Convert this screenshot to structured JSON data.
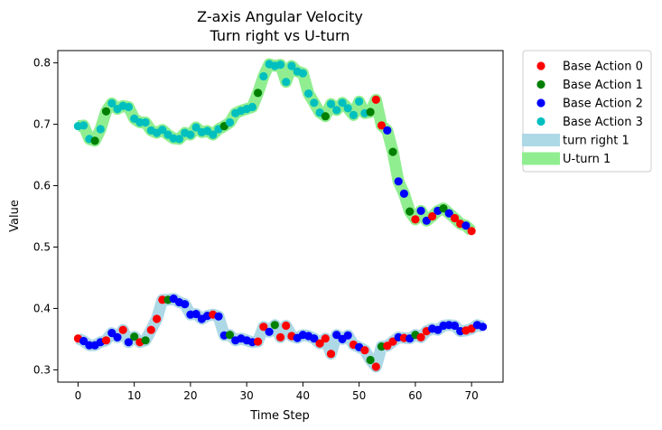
{
  "chart_data": {
    "type": "scatter",
    "title": "Z-axis Angular Velocity",
    "subtitle": "Turn right vs U-turn",
    "xlabel": "Time Step",
    "ylabel": "Value",
    "xlim": [
      -3.6,
      75.6
    ],
    "ylim": [
      0.28,
      0.82
    ],
    "xticks": [
      0,
      10,
      20,
      30,
      40,
      50,
      60,
      70
    ],
    "yticks": [
      0.3,
      0.4,
      0.5,
      0.6,
      0.7,
      0.8
    ],
    "xtick_labels": [
      "0",
      "10",
      "20",
      "30",
      "40",
      "50",
      "60",
      "70"
    ],
    "ytick_labels": [
      "0.3",
      "0.4",
      "0.5",
      "0.6",
      "0.7",
      "0.8"
    ],
    "grid": false,
    "legend_position": "outside right, top",
    "action_colors": [
      "#ff0000",
      "#008000",
      "#0000ff",
      "#00bfbf"
    ],
    "legend": [
      {
        "label": "Base Action 0",
        "kind": "marker",
        "color": "#ff0000"
      },
      {
        "label": "Base Action 1",
        "kind": "marker",
        "color": "#008000"
      },
      {
        "label": "Base Action 2",
        "kind": "marker",
        "color": "#0000ff"
      },
      {
        "label": "Base Action 3",
        "kind": "marker",
        "color": "#00bfbf"
      },
      {
        "label": "turn right 1",
        "kind": "line",
        "color": "#add8e6"
      },
      {
        "label": "U-turn 1",
        "kind": "line",
        "color": "#90ee90"
      }
    ],
    "series": [
      {
        "name": "U-turn 1",
        "line_color": "#90ee90",
        "x": [
          0,
          1,
          2,
          3,
          4,
          5,
          6,
          7,
          8,
          9,
          10,
          11,
          12,
          13,
          14,
          15,
          16,
          17,
          18,
          19,
          20,
          21,
          22,
          23,
          24,
          25,
          26,
          27,
          28,
          29,
          30,
          31,
          32,
          33,
          34,
          35,
          36,
          37,
          38,
          39,
          40,
          41,
          42,
          43,
          44,
          45,
          46,
          47,
          48,
          49,
          50,
          51,
          52,
          53,
          54,
          55,
          56,
          57,
          58,
          59,
          60,
          61,
          62,
          63,
          64,
          65,
          66,
          67,
          68,
          69,
          70
        ],
        "y": [
          0.697,
          0.698,
          0.676,
          0.673,
          0.692,
          0.721,
          0.734,
          0.725,
          0.73,
          0.728,
          0.709,
          0.703,
          0.703,
          0.69,
          0.686,
          0.691,
          0.683,
          0.677,
          0.676,
          0.686,
          0.683,
          0.695,
          0.687,
          0.689,
          0.683,
          0.692,
          0.697,
          0.703,
          0.718,
          0.722,
          0.725,
          0.728,
          0.751,
          0.778,
          0.798,
          0.795,
          0.797,
          0.769,
          0.795,
          0.786,
          0.783,
          0.75,
          0.735,
          0.719,
          0.713,
          0.733,
          0.723,
          0.735,
          0.726,
          0.715,
          0.737,
          0.718,
          0.72,
          0.74,
          0.698,
          0.69,
          0.655,
          0.607,
          0.587,
          0.558,
          0.545,
          0.559,
          0.543,
          0.55,
          0.559,
          0.563,
          0.555,
          0.547,
          0.538,
          0.535,
          0.526
        ],
        "actions": [
          3,
          3,
          3,
          1,
          3,
          1,
          3,
          3,
          3,
          3,
          3,
          3,
          3,
          3,
          3,
          3,
          3,
          3,
          3,
          3,
          3,
          3,
          3,
          3,
          3,
          3,
          1,
          3,
          3,
          3,
          3,
          3,
          1,
          3,
          3,
          3,
          3,
          3,
          3,
          3,
          3,
          3,
          3,
          3,
          1,
          3,
          3,
          3,
          3,
          3,
          3,
          3,
          1,
          0,
          0,
          2,
          1,
          2,
          2,
          1,
          0,
          2,
          2,
          0,
          2,
          1,
          2,
          0,
          0,
          2,
          0
        ]
      },
      {
        "name": "turn right 1",
        "line_color": "#add8e6",
        "x": [
          0,
          1,
          2,
          3,
          4,
          5,
          6,
          7,
          8,
          9,
          10,
          11,
          12,
          13,
          14,
          15,
          16,
          17,
          18,
          19,
          20,
          21,
          22,
          23,
          24,
          25,
          26,
          27,
          28,
          29,
          30,
          31,
          32,
          33,
          34,
          35,
          36,
          37,
          38,
          39,
          40,
          41,
          42,
          43,
          44,
          45,
          46,
          47,
          48,
          49,
          50,
          51,
          52,
          53,
          54,
          55,
          56,
          57,
          58,
          59,
          60,
          61,
          62,
          63,
          64,
          65,
          66,
          67,
          68,
          69,
          70,
          71,
          72
        ],
        "y": [
          0.351,
          0.347,
          0.34,
          0.34,
          0.345,
          0.348,
          0.36,
          0.353,
          0.365,
          0.345,
          0.354,
          0.345,
          0.348,
          0.365,
          0.383,
          0.414,
          0.414,
          0.416,
          0.41,
          0.407,
          0.39,
          0.391,
          0.383,
          0.388,
          0.39,
          0.387,
          0.356,
          0.357,
          0.348,
          0.351,
          0.348,
          0.345,
          0.346,
          0.37,
          0.362,
          0.373,
          0.353,
          0.372,
          0.355,
          0.352,
          0.357,
          0.355,
          0.351,
          0.343,
          0.351,
          0.326,
          0.357,
          0.35,
          0.356,
          0.341,
          0.337,
          0.332,
          0.316,
          0.305,
          0.338,
          0.339,
          0.346,
          0.353,
          0.352,
          0.351,
          0.357,
          0.353,
          0.363,
          0.367,
          0.365,
          0.372,
          0.373,
          0.372,
          0.363,
          0.364,
          0.367,
          0.373,
          0.37
        ],
        "actions": [
          0,
          2,
          2,
          2,
          2,
          0,
          2,
          2,
          0,
          2,
          1,
          0,
          1,
          0,
          0,
          0,
          1,
          2,
          2,
          2,
          2,
          2,
          2,
          2,
          0,
          2,
          2,
          1,
          2,
          2,
          2,
          2,
          0,
          0,
          2,
          1,
          0,
          0,
          0,
          2,
          2,
          2,
          2,
          0,
          0,
          0,
          2,
          2,
          2,
          0,
          2,
          0,
          1,
          0,
          1,
          0,
          0,
          2,
          0,
          2,
          1,
          0,
          0,
          2,
          2,
          2,
          2,
          2,
          2,
          0,
          0,
          2,
          2
        ]
      }
    ]
  }
}
